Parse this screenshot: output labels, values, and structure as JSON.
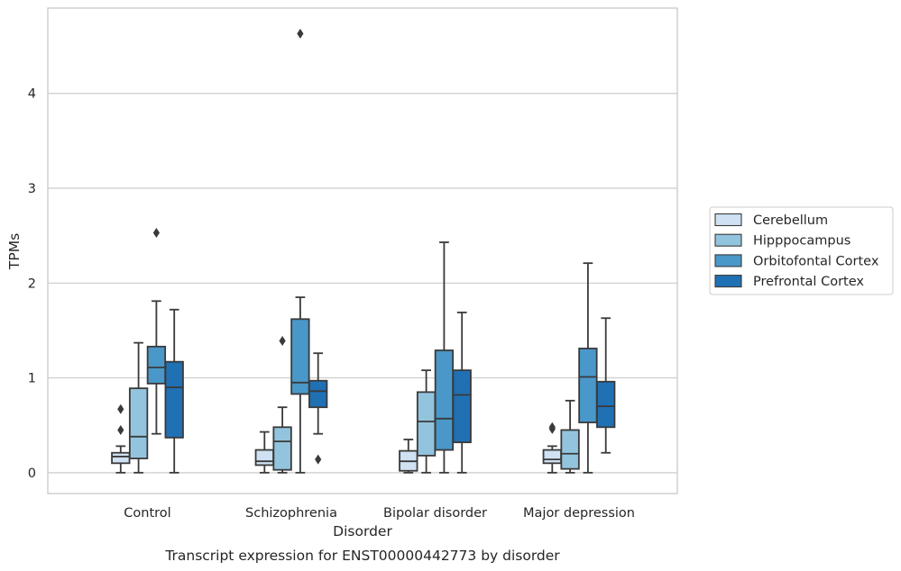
{
  "chart_data": {
    "type": "boxplot",
    "title": "",
    "caption": "Transcript expression for ENST00000442773 by disorder",
    "xlabel": "Disorder",
    "ylabel": "TPMs",
    "ylim": [
      -0.22,
      4.9
    ],
    "yticks": [
      0,
      1,
      2,
      3,
      4
    ],
    "grid": "horizontal",
    "legend_position": "right",
    "categories": [
      "Control",
      "Schizophrenia",
      "Bipolar disorder",
      "Major depression"
    ],
    "series": [
      {
        "name": "Cerebellum",
        "color": "#cfe1f2",
        "boxes": [
          {
            "whislo": 0.0,
            "q1": 0.1,
            "med": 0.17,
            "q3": 0.21,
            "whishi": 0.28,
            "fliers": [
              0.45,
              0.67
            ]
          },
          {
            "whislo": 0.0,
            "q1": 0.08,
            "med": 0.12,
            "q3": 0.24,
            "whishi": 0.43,
            "fliers": []
          },
          {
            "whislo": 0.0,
            "q1": 0.02,
            "med": 0.12,
            "q3": 0.23,
            "whishi": 0.35,
            "fliers": []
          },
          {
            "whislo": 0.0,
            "q1": 0.1,
            "med": 0.14,
            "q3": 0.24,
            "whishi": 0.28,
            "fliers": [
              0.46,
              0.48
            ]
          }
        ]
      },
      {
        "name": "Hipppocampus",
        "color": "#93c4de",
        "boxes": [
          {
            "whislo": 0.0,
            "q1": 0.15,
            "med": 0.38,
            "q3": 0.89,
            "whishi": 1.37,
            "fliers": []
          },
          {
            "whislo": 0.0,
            "q1": 0.03,
            "med": 0.33,
            "q3": 0.48,
            "whishi": 0.69,
            "fliers": [
              1.39
            ]
          },
          {
            "whislo": 0.0,
            "q1": 0.18,
            "med": 0.54,
            "q3": 0.85,
            "whishi": 1.08,
            "fliers": []
          },
          {
            "whislo": 0.0,
            "q1": 0.04,
            "med": 0.2,
            "q3": 0.45,
            "whishi": 0.76,
            "fliers": []
          }
        ]
      },
      {
        "name": "Orbitofontal Cortex",
        "color": "#4a98c9",
        "boxes": [
          {
            "whislo": 0.41,
            "q1": 0.94,
            "med": 1.11,
            "q3": 1.33,
            "whishi": 1.81,
            "fliers": [
              2.53
            ]
          },
          {
            "whislo": 0.0,
            "q1": 0.83,
            "med": 0.95,
            "q3": 1.62,
            "whishi": 1.85,
            "fliers": [
              4.63
            ]
          },
          {
            "whislo": 0.0,
            "q1": 0.24,
            "med": 0.57,
            "q3": 1.29,
            "whishi": 2.43,
            "fliers": []
          },
          {
            "whislo": 0.0,
            "q1": 0.53,
            "med": 1.01,
            "q3": 1.31,
            "whishi": 2.21,
            "fliers": []
          }
        ]
      },
      {
        "name": "Prefrontal Cortex",
        "color": "#2070b4",
        "boxes": [
          {
            "whislo": 0.0,
            "q1": 0.37,
            "med": 0.9,
            "q3": 1.17,
            "whishi": 1.72,
            "fliers": []
          },
          {
            "whislo": 0.41,
            "q1": 0.69,
            "med": 0.86,
            "q3": 0.97,
            "whishi": 1.26,
            "fliers": [
              0.14
            ]
          },
          {
            "whislo": 0.0,
            "q1": 0.32,
            "med": 0.82,
            "q3": 1.08,
            "whishi": 1.69,
            "fliers": []
          },
          {
            "whislo": 0.21,
            "q1": 0.48,
            "med": 0.7,
            "q3": 0.96,
            "whishi": 1.63,
            "fliers": []
          }
        ]
      }
    ],
    "style": {
      "line_color": "#3a3a3a",
      "grid_color": "#cccccc",
      "frame_color": "#cccccc",
      "background": "#ffffff"
    }
  }
}
